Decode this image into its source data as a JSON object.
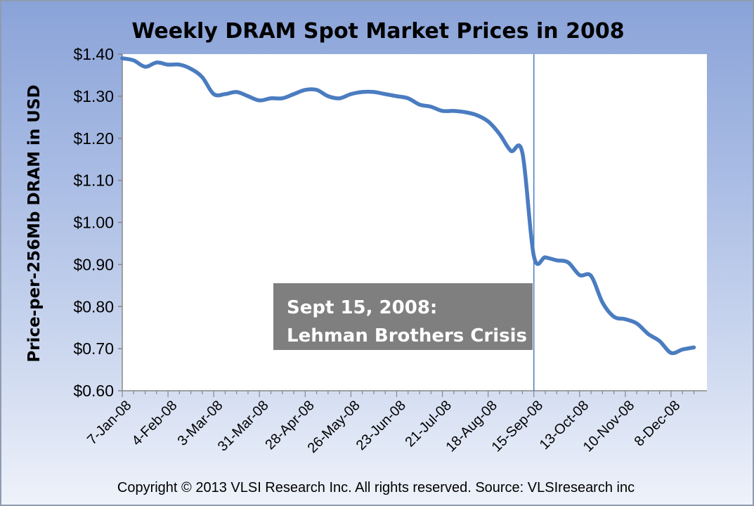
{
  "chart_data": {
    "type": "line",
    "title": "Weekly DRAM Spot Market Prices in 2008",
    "ylabel": "Price-per-256Mb DRAM in USD",
    "xlabel": "",
    "ylim": [
      0.6,
      1.4
    ],
    "yticks": [
      0.6,
      0.7,
      0.8,
      0.9,
      1.0,
      1.1,
      1.2,
      1.3,
      1.4
    ],
    "ytick_labels": [
      "$0.60",
      "$0.70",
      "$0.80",
      "$0.90",
      "$1.00",
      "$1.10",
      "$1.20",
      "$1.30",
      "$1.40"
    ],
    "xtick_labels": [
      "7-Jan-08",
      "4-Feb-08",
      "3-Mar-08",
      "31-Mar-08",
      "28-Apr-08",
      "26-May-08",
      "23-Jun-08",
      "21-Jul-08",
      "18-Aug-08",
      "15-Sep-08",
      "13-Oct-08",
      "10-Nov-08",
      "8-Dec-08"
    ],
    "grid": false,
    "line_color": "#4a7cc0",
    "series": [
      {
        "values": [
          1.39,
          1.385,
          1.37,
          1.38,
          1.375,
          1.375,
          1.365,
          1.345,
          1.305,
          1.305,
          1.31,
          1.3,
          1.29,
          1.295,
          1.295,
          1.305,
          1.315,
          1.315,
          1.3,
          1.295,
          1.305,
          1.31,
          1.31,
          1.305,
          1.3,
          1.295,
          1.28,
          1.275,
          1.265,
          1.265,
          1.262,
          1.255,
          1.24,
          1.21,
          1.17,
          1.165,
          0.92,
          0.917,
          0.91,
          0.905,
          0.875,
          0.873,
          0.81,
          0.776,
          0.77,
          0.76,
          0.735,
          0.718,
          0.69,
          0.698,
          0.703
        ]
      }
    ],
    "annotation": {
      "lines": [
        "Sept 15, 2008:",
        "Lehman Brothers Crisis"
      ],
      "marker_week_index": 36,
      "box_color": "#7f7f7f",
      "marker_color": "#4a7cc0"
    }
  },
  "footer": {
    "copyright": "Copyright © 2013 VLSI Research Inc.  All rights reserved.  Source: VLSIresearch inc"
  },
  "colors": {
    "plot_background": "#ffffff",
    "background_top": "#8aa3d8",
    "background_bottom": "#eef2fa"
  }
}
